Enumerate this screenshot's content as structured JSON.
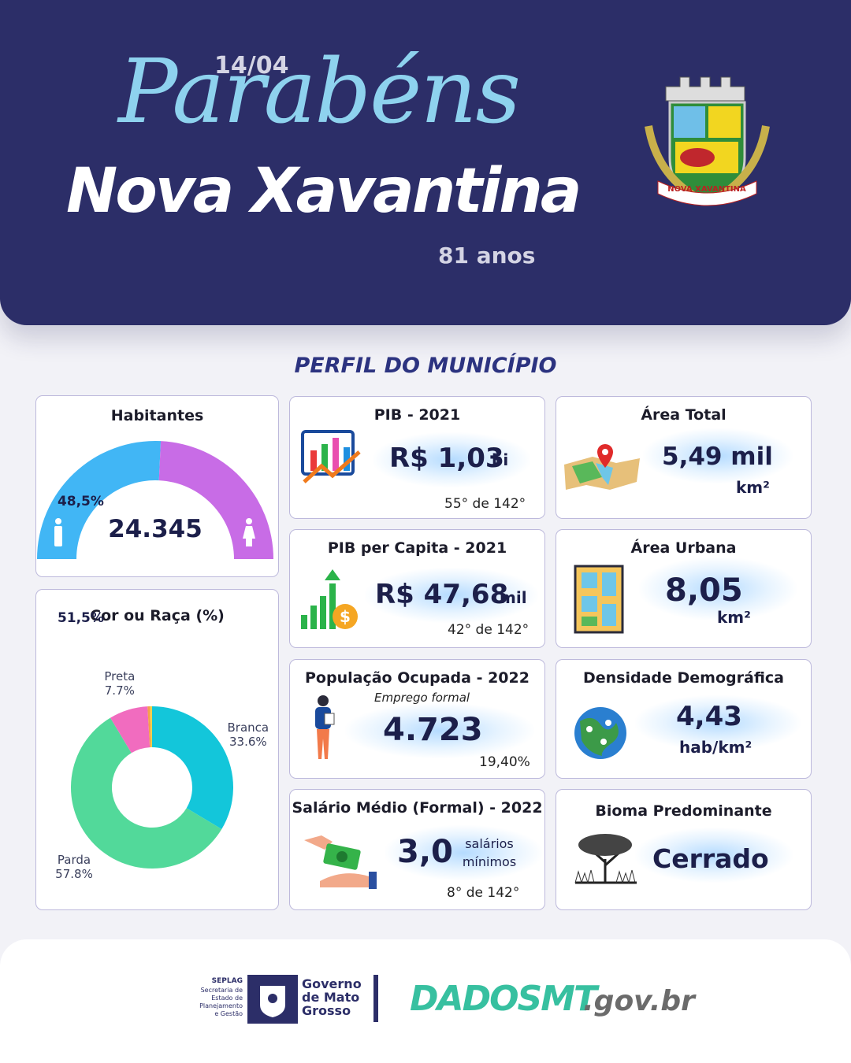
{
  "header": {
    "date": "14/04",
    "greeting": "Parabéns",
    "city": "Nova Xavantina",
    "age": "81 anos",
    "crest_label": "NOVA XAVANTINA"
  },
  "section_title": "PERFIL DO MUNICÍPIO",
  "chart_data": [
    {
      "type": "semi-donut",
      "title": "Habitantes",
      "center_label": "24.345",
      "categories": [
        null,
        null
      ],
      "values": [
        51.5,
        48.5
      ],
      "value_labels": [
        "51,5%",
        "48,5%"
      ],
      "colors": [
        "#41b6f5",
        "#c86ce6"
      ]
    },
    {
      "type": "donut",
      "title": "Cor ou Raça (%)",
      "categories": [
        "Branca",
        "Parda",
        "Preta",
        null,
        null
      ],
      "values": [
        33.6,
        57.8,
        7.7,
        0.5,
        0.4
      ],
      "value_labels": [
        "33.6%",
        "57.8%",
        "7.7%",
        null,
        null
      ],
      "colors": [
        "#13c6da",
        "#52d99a",
        "#f16cbf",
        "#f5a04a",
        "#f2d24b"
      ]
    }
  ],
  "cards": [
    {
      "title": "PIB - 2021",
      "value": "R$ 1,03",
      "unit": "bi",
      "note": "55° de 142°"
    },
    {
      "title": "PIB per Capita - 2021",
      "value": "R$ 47,68",
      "unit": "mil",
      "note": "42° de 142°"
    },
    {
      "title": "População  Ocupada - 2022",
      "subtitle": "Emprego formal",
      "value": "4.723",
      "note": "19,40%"
    },
    {
      "title": "Salário Médio (Formal) - 2022",
      "value": "3,0",
      "unit": "salários mínimos",
      "note": "8° de 142°"
    },
    {
      "title": "Área Total",
      "value": "5,49 mil",
      "unit": "km²"
    },
    {
      "title": "Área Urbana",
      "value": "8,05",
      "unit": "km²"
    },
    {
      "title": "Densidade Demográfica",
      "value": "4,43",
      "unit": "hab/km²"
    },
    {
      "title": "Bioma Predominante",
      "value": "Cerrado"
    }
  ],
  "footer": {
    "seplag": "SEPLAG",
    "seplag_name": "Secretaria de Estado de Planejamento e Gestão",
    "government": "Governo de Mato Grosso",
    "portal": "DADOSMT",
    "portal_domain": ".gov.br"
  }
}
